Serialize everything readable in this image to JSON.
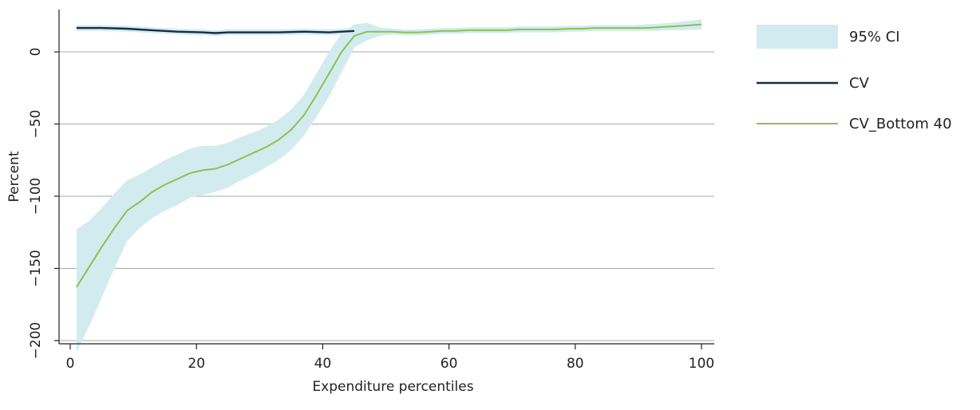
{
  "chart_data": {
    "type": "line",
    "title": "",
    "xlabel": "Expenditure percentiles",
    "ylabel": "Percent",
    "xlim": [
      0,
      100
    ],
    "ylim": [
      -210,
      28
    ],
    "x_ticks": [
      0,
      20,
      40,
      60,
      80,
      100
    ],
    "x_tick_labels": [
      "0",
      "20",
      "40",
      "60",
      "80",
      "100"
    ],
    "y_ticks": [
      0,
      -50,
      -100,
      -150,
      -200
    ],
    "y_tick_labels": [
      "0",
      "−50",
      "−100",
      "−150",
      "−200"
    ],
    "grid": "horizontal",
    "legend_position": "right",
    "colors": {
      "ci": "#d2ebef",
      "cv": "#1a2b44",
      "cv_bottom40": "#8cc152",
      "grid": "#a8a8a8",
      "axis": "#222222"
    },
    "series": [
      {
        "name": "CV",
        "x": [
          1,
          5,
          9,
          13,
          17,
          21,
          23,
          25,
          29,
          33,
          37,
          41,
          45
        ],
        "values": [
          16.5,
          16.5,
          16,
          15,
          14,
          13.5,
          13,
          13.5,
          13.5,
          13.5,
          14,
          13.5,
          14.5
        ]
      },
      {
        "name": "CV_Bottom 40",
        "x": [
          1,
          3,
          5,
          7,
          9,
          11,
          13,
          15,
          17,
          19,
          21,
          23,
          25,
          27,
          29,
          31,
          33,
          35,
          37,
          39,
          41,
          43,
          45,
          47,
          49,
          51,
          53,
          55,
          57,
          59,
          61,
          63,
          65,
          67,
          69,
          71,
          73,
          75,
          77,
          79,
          81,
          83,
          85,
          87,
          89,
          91,
          93,
          95,
          97,
          100
        ],
        "values": [
          -163,
          -149,
          -135,
          -122,
          -110,
          -104,
          -97,
          -92,
          -88,
          -84,
          -82,
          -81,
          -78,
          -74,
          -70,
          -66,
          -61,
          -54,
          -44,
          -30,
          -15,
          0,
          11,
          14,
          14,
          14,
          13.5,
          13.5,
          14,
          14.5,
          14.5,
          15,
          15,
          15,
          15,
          15.5,
          15.5,
          15.5,
          15.5,
          16,
          16,
          16.5,
          16.5,
          16.5,
          16.5,
          16.5,
          17,
          17.5,
          18,
          19
        ]
      }
    ],
    "ci": {
      "name": "95% CI",
      "bands": [
        {
          "x": [
            1,
            5,
            9,
            13,
            17,
            21,
            23,
            25,
            29,
            33,
            37,
            41,
            45
          ],
          "upper": [
            18.5,
            18.5,
            18,
            17,
            16,
            15.5,
            15,
            15.5,
            15.5,
            15.5,
            16,
            15.5,
            16.5
          ],
          "lower": [
            14.5,
            14.5,
            14,
            13,
            12,
            11.5,
            11,
            11.5,
            11.5,
            11.5,
            12,
            11.5,
            12.5
          ]
        },
        {
          "x": [
            1,
            3,
            5,
            7,
            9,
            11,
            13,
            15,
            17,
            19,
            21,
            23,
            25,
            27,
            29,
            31,
            33,
            35,
            37,
            39,
            41,
            43,
            45,
            47,
            49,
            51,
            53,
            55,
            57,
            59,
            61,
            63,
            65,
            67,
            69,
            71,
            73,
            75,
            77,
            79,
            81,
            83,
            85,
            87,
            89,
            91,
            93,
            95,
            97,
            100
          ],
          "upper": [
            -123,
            -117,
            -108,
            -98,
            -89,
            -85,
            -80,
            -75,
            -71,
            -67,
            -65,
            -65,
            -63,
            -59,
            -56,
            -52,
            -47,
            -40,
            -30,
            -15,
            0,
            13,
            19,
            20,
            17,
            16,
            15.5,
            15.5,
            16,
            16.5,
            16.5,
            17,
            17,
            17,
            17,
            17.5,
            17.5,
            17.5,
            17.5,
            18,
            18,
            18.5,
            18.5,
            18.5,
            18.5,
            19,
            19.5,
            20,
            21,
            22.5
          ],
          "lower": [
            -208,
            -190,
            -170,
            -150,
            -131,
            -122,
            -115,
            -110,
            -106,
            -101,
            -99,
            -97,
            -94,
            -89,
            -85,
            -80,
            -75,
            -68,
            -58,
            -45,
            -31,
            -14,
            3,
            8,
            11,
            12,
            11.5,
            11.5,
            12,
            12.5,
            12.5,
            13,
            13,
            13,
            13,
            13.5,
            13.5,
            13.5,
            13.5,
            14,
            14,
            14.5,
            14.5,
            14.5,
            14.5,
            14.5,
            14.5,
            15,
            15,
            15.5
          ]
        }
      ]
    },
    "legend": [
      {
        "label": "95% CI",
        "kind": "band"
      },
      {
        "label": "CV",
        "kind": "line"
      },
      {
        "label": "CV_Bottom 40",
        "kind": "line"
      }
    ]
  }
}
